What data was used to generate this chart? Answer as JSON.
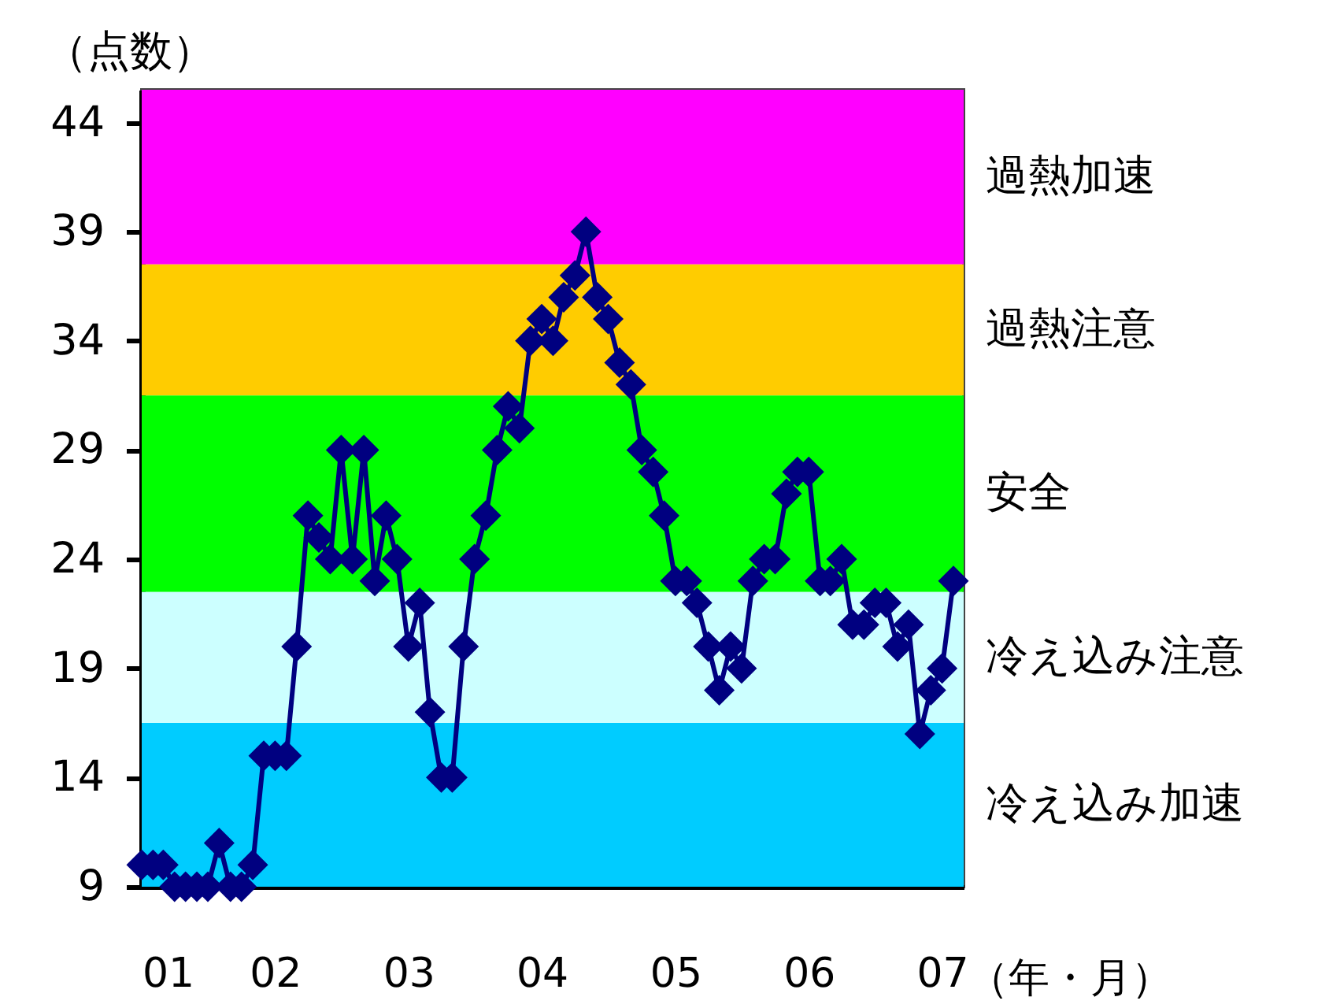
{
  "chart_data": {
    "type": "line",
    "ylabel": "（点数）",
    "xlabel": "（年・月）",
    "x": [
      "2001-01",
      "2001-02",
      "2001-03",
      "2001-04",
      "2001-05",
      "2001-06",
      "2001-07",
      "2001-08",
      "2001-09",
      "2001-10",
      "2001-11",
      "2001-12",
      "2002-01",
      "2002-02",
      "2002-03",
      "2002-04",
      "2002-05",
      "2002-06",
      "2002-07",
      "2002-08",
      "2002-09",
      "2002-10",
      "2002-11",
      "2002-12",
      "2003-01",
      "2003-02",
      "2003-03",
      "2003-04",
      "2003-05",
      "2003-06",
      "2003-07",
      "2003-08",
      "2003-09",
      "2003-10",
      "2003-11",
      "2003-12",
      "2004-01",
      "2004-02",
      "2004-03",
      "2004-04",
      "2004-05",
      "2004-06",
      "2004-07",
      "2004-08",
      "2004-09",
      "2004-10",
      "2004-11",
      "2004-12",
      "2005-01",
      "2005-02",
      "2005-03",
      "2005-04",
      "2005-05",
      "2005-06",
      "2005-07",
      "2005-08",
      "2005-09",
      "2005-10",
      "2005-11",
      "2005-12",
      "2006-01",
      "2006-02",
      "2006-03",
      "2006-04",
      "2006-05",
      "2006-06",
      "2006-07",
      "2006-08",
      "2006-09",
      "2006-10",
      "2006-11",
      "2006-12",
      "2007-01",
      "2007-02"
    ],
    "series": [
      {
        "color": "#000080",
        "values": [
          10,
          10,
          10,
          9,
          9,
          9,
          9,
          11,
          9,
          9,
          10,
          15,
          15,
          15,
          20,
          26,
          25,
          24,
          29,
          24,
          29,
          23,
          26,
          24,
          20,
          22,
          17,
          14,
          14,
          20,
          24,
          26,
          29,
          31,
          30,
          34,
          35,
          34,
          36,
          37,
          39,
          36,
          35,
          33,
          32,
          29,
          28,
          26,
          23,
          23,
          22,
          20,
          18,
          20,
          19,
          23,
          24,
          24,
          27,
          28,
          28,
          23,
          23,
          24,
          21,
          21,
          22,
          22,
          20,
          21,
          16,
          18,
          19,
          23
        ]
      }
    ],
    "marker": "diamond",
    "line_style": "solid",
    "ylim": [
      9,
      45.5
    ],
    "yticks": [
      9,
      14,
      19,
      24,
      29,
      34,
      39,
      44
    ],
    "xlim": [
      "2001-01",
      "2007-03"
    ],
    "xticks": [
      {
        "value": "2001-01",
        "label": "01"
      },
      {
        "value": "2002-01",
        "label": "02"
      },
      {
        "value": "2003-01",
        "label": "03"
      },
      {
        "value": "2004-01",
        "label": "04"
      },
      {
        "value": "2005-01",
        "label": "05"
      },
      {
        "value": "2006-01",
        "label": "06"
      },
      {
        "value": "2007-01",
        "label": "07"
      }
    ],
    "bands": [
      {
        "axis": "y",
        "from": 37.5,
        "to": 45.5,
        "label": "過熱加速",
        "color": "#ff00ff"
      },
      {
        "axis": "y",
        "from": 31.5,
        "to": 37.5,
        "label": "過熱注意",
        "color": "#ffcc00"
      },
      {
        "axis": "y",
        "from": 22.5,
        "to": 31.5,
        "label": "安全",
        "color": "#00ff00"
      },
      {
        "axis": "y",
        "from": 16.5,
        "to": 22.5,
        "label": "冷え込み注意",
        "color": "#ccffff"
      },
      {
        "axis": "y",
        "from": 9,
        "to": 16.5,
        "label": "冷え込み加速",
        "color": "#00ccff"
      }
    ]
  }
}
